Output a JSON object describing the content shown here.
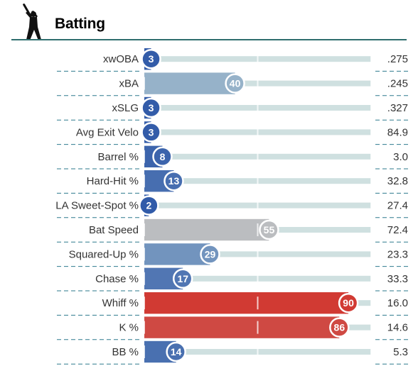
{
  "header": {
    "title": "Batting",
    "icon": "batter-silhouette-icon"
  },
  "chart_data": {
    "type": "bar",
    "orientation": "horizontal",
    "title": "Batting",
    "xlim": [
      0,
      100
    ],
    "categories": [
      "xwOBA",
      "xBA",
      "xSLG",
      "Avg Exit Velo",
      "Barrel %",
      "Hard-Hit %",
      "LA Sweet-Spot %",
      "Bat Speed",
      "Squared-Up %",
      "Chase %",
      "Whiff %",
      "K %",
      "BB %"
    ],
    "percentiles": [
      3,
      40,
      3,
      3,
      8,
      13,
      2,
      55,
      29,
      17,
      90,
      86,
      14
    ],
    "stat_values": [
      ".275",
      ".245",
      ".327",
      "84.9",
      "3.0",
      "32.8",
      "27.4",
      "72.4",
      "23.3",
      "33.3",
      "16.0",
      "14.6",
      "5.3"
    ],
    "colors": {
      "low": "#2f59a8",
      "mid": "#b8d0d4",
      "high": "#d13a33",
      "track": "#cfe0e0",
      "divider": "#2e7a8e"
    }
  }
}
